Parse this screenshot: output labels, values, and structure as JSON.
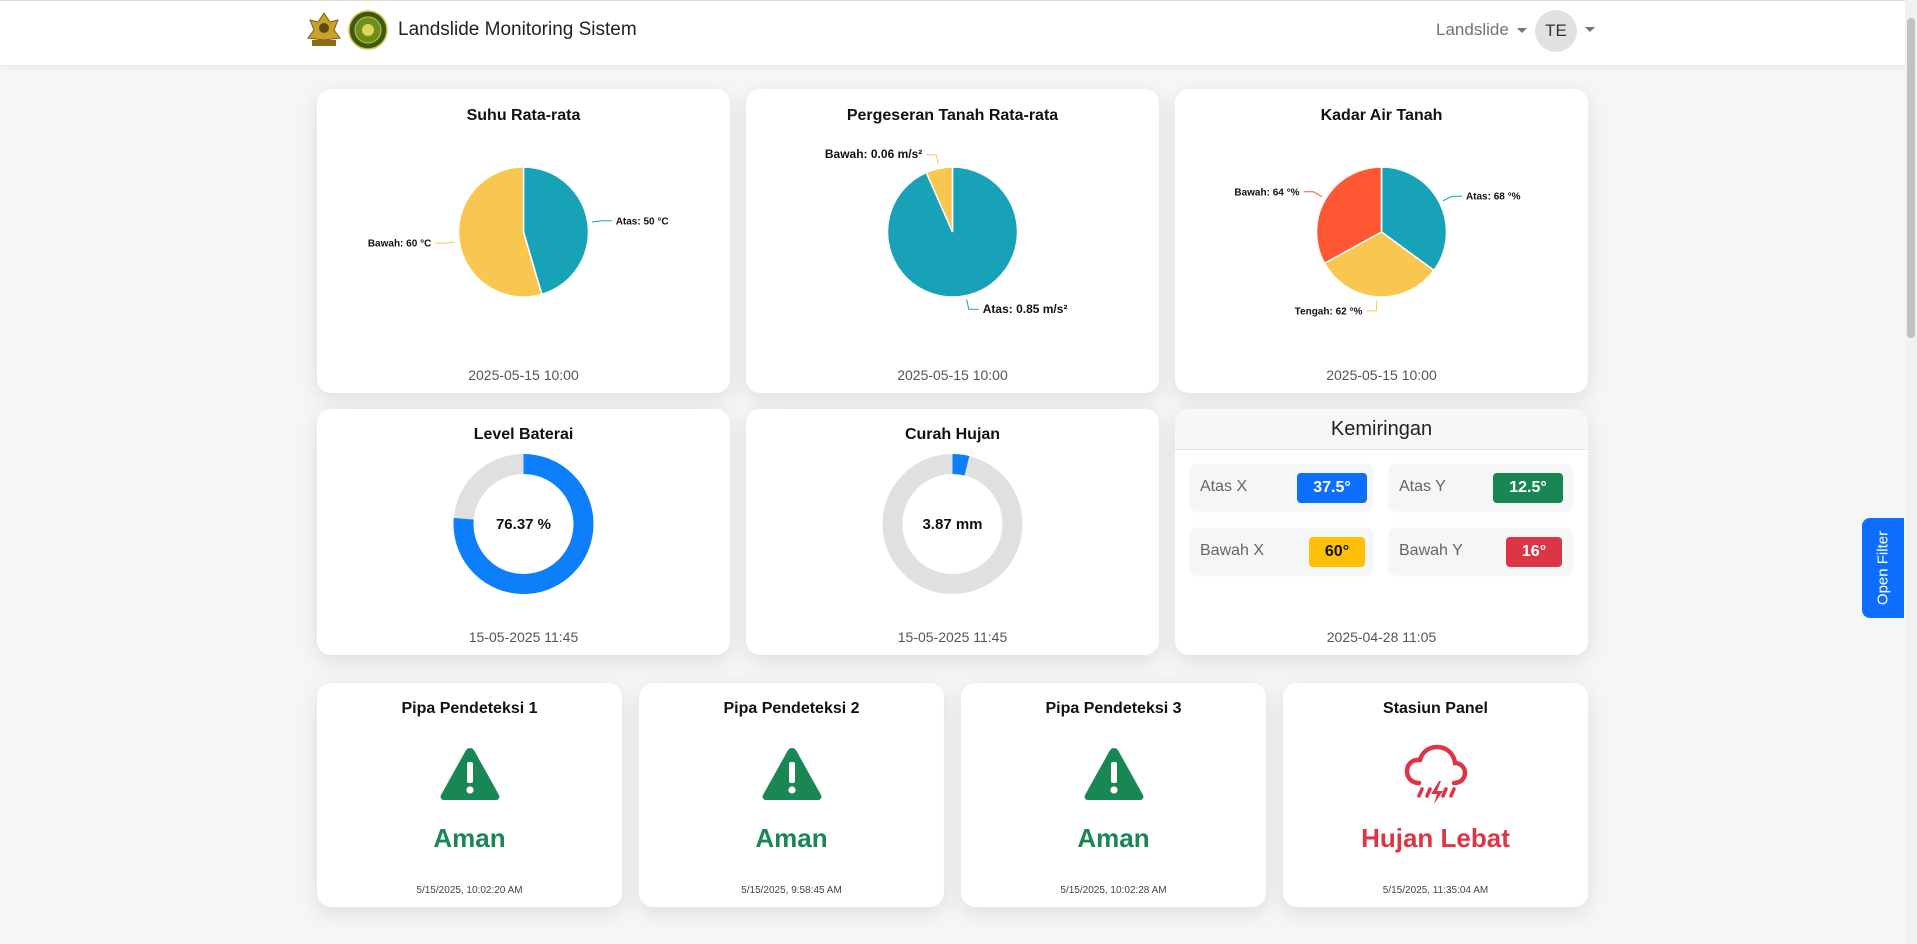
{
  "navbar": {
    "title": "Landslide Monitoring Sistem",
    "menu_label": "Landslide",
    "avatar_initials": "TE"
  },
  "temperature": {
    "title": "Suhu Rata-rata",
    "timestamp": "2025-05-15 10:00",
    "chart_data": {
      "type": "pie",
      "title": "Suhu Rata-rata",
      "slices": [
        {
          "label": "Atas: 50 °C",
          "value": 50,
          "color": "#17a2b8"
        },
        {
          "label": "Bawah: 60 °C",
          "value": 60,
          "color": "#f9c74f"
        }
      ]
    }
  },
  "displacement": {
    "title": "Pergeseran Tanah Rata-rata",
    "timestamp": "2025-05-15 10:00",
    "chart_data": {
      "type": "pie",
      "title": "Pergeseran Tanah Rata-rata",
      "slices": [
        {
          "label": "Atas: 0.85 m/s²",
          "value": 0.85,
          "color": "#17a2b8"
        },
        {
          "label": "Bawah: 0.06 m/s²",
          "value": 0.06,
          "color": "#f9c74f"
        }
      ]
    }
  },
  "moisture": {
    "title": "Kadar Air Tanah",
    "timestamp": "2025-05-15 10:00",
    "chart_data": {
      "type": "pie",
      "title": "Kadar Air Tanah",
      "slices": [
        {
          "label": "Atas: 68 °%",
          "value": 68,
          "color": "#17a2b8"
        },
        {
          "label": "Tengah: 62 °%",
          "value": 62,
          "color": "#f9c74f"
        },
        {
          "label": "Bawah: 64 °%",
          "value": 64,
          "color": "#ff5733"
        }
      ]
    }
  },
  "battery": {
    "title": "Level Baterai",
    "value_text": "76.37 %",
    "timestamp": "15-05-2025 11:45",
    "chart_data": {
      "type": "pie",
      "title": "Level Baterai",
      "value": 76.37,
      "max": 100,
      "color": "#0d7ffb",
      "track_color": "#e0e0e0"
    }
  },
  "rainfall": {
    "title": "Curah Hujan",
    "value_text": "3.87 mm",
    "timestamp": "15-05-2025 11:45",
    "chart_data": {
      "type": "pie",
      "title": "Curah Hujan",
      "value": 3.87,
      "max": 100,
      "color": "#0d7ffb",
      "track_color": "#e0e0e0"
    }
  },
  "tilt": {
    "title": "Kemiringan",
    "timestamp": "2025-04-28 11:05",
    "items": [
      {
        "label": "Atas X",
        "value": "37.5°",
        "color": "#0d6efd",
        "text_color": "#ffffff"
      },
      {
        "label": "Atas Y",
        "value": "12.5°",
        "color": "#198754",
        "text_color": "#ffffff"
      },
      {
        "label": "Bawah X",
        "value": "60°",
        "color": "#ffc107",
        "text_color": "#111111"
      },
      {
        "label": "Bawah Y",
        "value": "16°",
        "color": "#dc3545",
        "text_color": "#ffffff"
      }
    ]
  },
  "detectors": [
    {
      "title": "Pipa Pendeteksi 1",
      "status": "Aman",
      "timestamp": "5/15/2025, 10:02:20 AM",
      "color": "#198754",
      "icon": "warning-triangle-icon"
    },
    {
      "title": "Pipa Pendeteksi 2",
      "status": "Aman",
      "timestamp": "5/15/2025, 9:58:45 AM",
      "color": "#198754",
      "icon": "warning-triangle-icon"
    },
    {
      "title": "Pipa Pendeteksi 3",
      "status": "Aman",
      "timestamp": "5/15/2025, 10:02:28 AM",
      "color": "#198754",
      "icon": "warning-triangle-icon"
    }
  ],
  "station": {
    "title": "Stasiun Panel",
    "status": "Hujan Lebat",
    "timestamp": "5/15/2025, 11:35:04 AM",
    "color": "#dc3545",
    "icon": "storm-cloud-icon"
  },
  "filter_button": {
    "label": "Open Filter",
    "color": "#0d6efd"
  }
}
